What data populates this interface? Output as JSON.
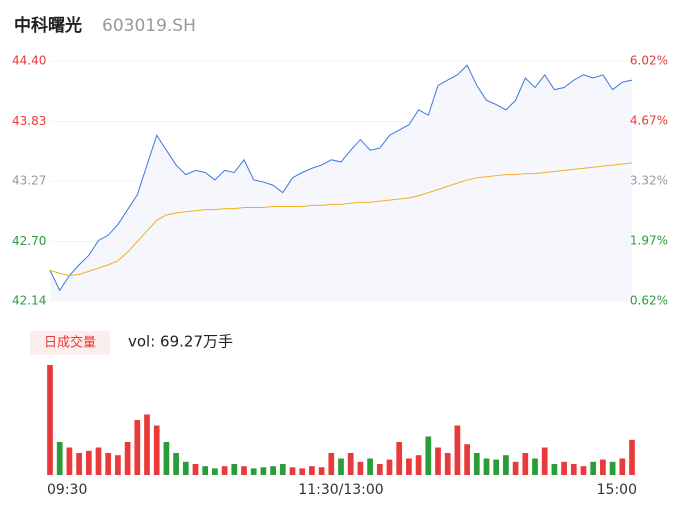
{
  "header": {
    "name": "中科曙光",
    "code": "603019.SH"
  },
  "volume_legend": {
    "label": "日成交量",
    "text": "vol: 69.27万手"
  },
  "chart_data": {
    "type": "line",
    "xlim": [
      0,
      60
    ],
    "xticks": [
      {
        "value": 0,
        "label": "09:30"
      },
      {
        "value": 30,
        "label": "11:30/13:00"
      },
      {
        "value": 60,
        "label": "15:00"
      }
    ],
    "ylim": [
      42.14,
      44.4
    ],
    "yticks": [
      {
        "value": 44.4,
        "label": "44.40"
      },
      {
        "value": 43.83,
        "label": "43.83"
      },
      {
        "value": 43.27,
        "label": "43.27"
      },
      {
        "value": 42.7,
        "label": "42.70"
      },
      {
        "value": 42.14,
        "label": "42.14"
      }
    ],
    "y2lim": [
      0.62,
      6.02
    ],
    "y2ticks": [
      {
        "value": 6.02,
        "label": "6.02%"
      },
      {
        "value": 4.67,
        "label": "4.67%"
      },
      {
        "value": 3.32,
        "label": "3.32%"
      },
      {
        "value": 1.97,
        "label": "1.97%"
      },
      {
        "value": 0.62,
        "label": "0.62%"
      }
    ],
    "series": [
      {
        "name": "price",
        "color": "#3a78e0",
        "values": [
          42.43,
          42.24,
          42.38,
          42.48,
          42.57,
          42.71,
          42.76,
          42.86,
          43.0,
          43.14,
          43.42,
          43.7,
          43.56,
          43.42,
          43.33,
          43.37,
          43.35,
          43.28,
          43.37,
          43.35,
          43.47,
          43.28,
          43.26,
          43.23,
          43.16,
          43.3,
          43.35,
          43.39,
          43.42,
          43.47,
          43.45,
          43.56,
          43.66,
          43.56,
          43.58,
          43.7,
          43.75,
          43.8,
          43.94,
          43.89,
          44.17,
          44.22,
          44.27,
          44.36,
          44.17,
          44.03,
          43.99,
          43.94,
          44.03,
          44.24,
          44.15,
          44.27,
          44.13,
          44.15,
          44.22,
          44.27,
          44.24,
          44.27,
          44.13,
          44.2,
          44.22
        ]
      },
      {
        "name": "average",
        "color": "#f0b020",
        "values": [
          42.43,
          42.4,
          42.38,
          42.39,
          42.42,
          42.45,
          42.48,
          42.52,
          42.6,
          42.7,
          42.8,
          42.9,
          42.95,
          42.97,
          42.98,
          42.99,
          43.0,
          43.0,
          43.01,
          43.01,
          43.02,
          43.02,
          43.02,
          43.03,
          43.03,
          43.03,
          43.03,
          43.04,
          43.04,
          43.05,
          43.05,
          43.06,
          43.07,
          43.07,
          43.08,
          43.09,
          43.1,
          43.11,
          43.13,
          43.16,
          43.19,
          43.22,
          43.25,
          43.28,
          43.3,
          43.31,
          43.32,
          43.33,
          43.33,
          43.34,
          43.34,
          43.35,
          43.36,
          43.37,
          43.38,
          43.39,
          43.4,
          43.41,
          43.42,
          43.43,
          43.44
        ]
      }
    ],
    "volume": {
      "up_color": "#e83a3a",
      "down_color": "#2a9d3a",
      "ylim": [
        0,
        100
      ],
      "values": [
        100,
        30,
        25,
        20,
        22,
        25,
        20,
        18,
        30,
        50,
        55,
        45,
        30,
        20,
        12,
        10,
        8,
        6,
        8,
        10,
        8,
        6,
        7,
        8,
        10,
        7,
        6,
        8,
        7,
        20,
        15,
        20,
        12,
        15,
        10,
        14,
        30,
        15,
        18,
        35,
        25,
        20,
        45,
        28,
        20,
        15,
        14,
        18,
        12,
        20,
        15,
        25,
        10,
        12,
        10,
        8,
        12,
        14,
        12,
        15,
        32
      ]
    }
  }
}
